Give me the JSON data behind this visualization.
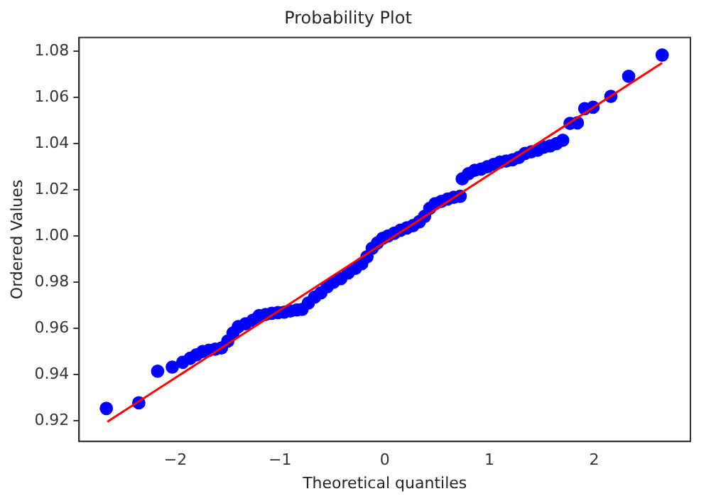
{
  "chart_data": {
    "type": "scatter",
    "title": "Probability Plot",
    "xlabel": "Theoretical quantiles",
    "ylabel": "Ordered Values",
    "xlim": [
      -2.92,
      2.92
    ],
    "xticks": [
      {
        "value": -2,
        "label": "−2"
      },
      {
        "value": -1,
        "label": "−1"
      },
      0,
      1,
      2
    ],
    "ylim": [
      0.911,
      1.086
    ],
    "yticks": [
      0.92,
      0.94,
      0.96,
      0.98,
      {
        "value": 1,
        "label": "1.00"
      },
      1.02,
      1.04,
      1.06,
      1.08
    ],
    "grid": false,
    "legend": false,
    "series": [
      {
        "marker": "circle",
        "color": "#0000ff",
        "x": [
          -2.66,
          -2.35,
          -2.17,
          -2.03,
          -1.93,
          -1.86,
          -1.8,
          -1.74,
          -1.68,
          -1.62,
          -1.56,
          -1.5,
          -1.45,
          -1.4,
          -1.33,
          -1.26,
          -1.2,
          -1.14,
          -1.08,
          -1.02,
          -0.96,
          -0.9,
          -0.84,
          -0.79,
          -0.73,
          -0.67,
          -0.61,
          -0.55,
          -0.49,
          -0.42,
          -0.35,
          -0.28,
          -0.22,
          -0.17,
          -0.12,
          -0.07,
          -0.02,
          0.03,
          0.09,
          0.15,
          0.21,
          0.27,
          0.33,
          0.38,
          0.43,
          0.48,
          0.54,
          0.6,
          0.66,
          0.72,
          0.74,
          0.8,
          0.86,
          0.92,
          0.98,
          1.04,
          1.1,
          1.16,
          1.22,
          1.28,
          1.34,
          1.4,
          1.46,
          1.52,
          1.58,
          1.64,
          1.7,
          1.77,
          1.84,
          1.91,
          1.99,
          2.16,
          2.33,
          2.65
        ],
        "values": [
          0.9253,
          0.9277,
          0.9414,
          0.9432,
          0.9453,
          0.947,
          0.9485,
          0.95,
          0.9505,
          0.951,
          0.9515,
          0.9545,
          0.958,
          0.9607,
          0.962,
          0.9635,
          0.9655,
          0.966,
          0.9665,
          0.9668,
          0.967,
          0.9675,
          0.968,
          0.9682,
          0.971,
          0.9735,
          0.9754,
          0.978,
          0.98,
          0.9815,
          0.984,
          0.986,
          0.988,
          0.991,
          0.9947,
          0.997,
          0.999,
          1.0,
          1.0012,
          1.0025,
          1.0035,
          1.0045,
          1.0062,
          1.0085,
          1.012,
          1.014,
          1.015,
          1.016,
          1.0168,
          1.0172,
          1.0248,
          1.027,
          1.0285,
          1.029,
          1.03,
          1.031,
          1.032,
          1.0325,
          1.033,
          1.034,
          1.0358,
          1.0365,
          1.0372,
          1.0385,
          1.039,
          1.04,
          1.0415,
          1.0488,
          1.049,
          1.0552,
          1.0558,
          1.0605,
          1.0692,
          1.0784
        ]
      },
      {
        "type": "line",
        "marker": "none",
        "color": "#ff0000",
        "x": [
          -2.65,
          2.65
        ],
        "values": [
          0.9195,
          1.075
        ]
      }
    ]
  }
}
